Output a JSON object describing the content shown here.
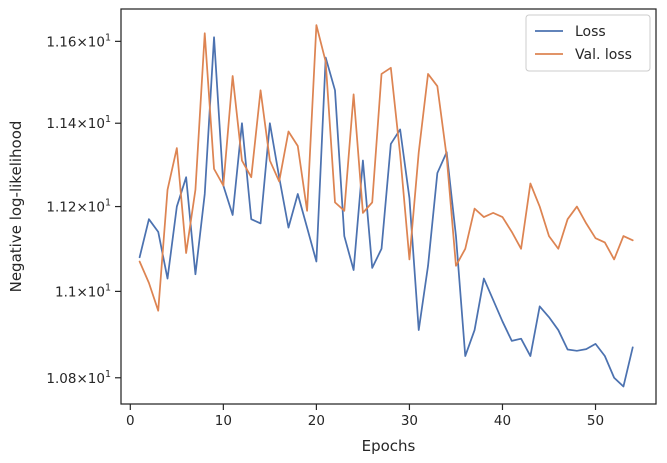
{
  "chart_data": {
    "type": "line",
    "xlabel": "Epochs",
    "ylabel": "Negative log-likelihood",
    "yscale": "log",
    "xlim": [
      -1,
      56.5
    ],
    "ylim": [
      10.74,
      11.68
    ],
    "x_ticks": [
      0,
      10,
      20,
      30,
      40,
      50
    ],
    "y_ticks": [
      {
        "value": 10.8,
        "base": "1.08",
        "exp": "1"
      },
      {
        "value": 11.0,
        "base": "1.1",
        "exp": "1"
      },
      {
        "value": 11.2,
        "base": "1.12",
        "exp": "1"
      },
      {
        "value": 11.4,
        "base": "1.14",
        "exp": "1"
      },
      {
        "value": 11.6,
        "base": "1.16",
        "exp": "1"
      }
    ],
    "grid": false,
    "legend_position": "top-right",
    "x": [
      1,
      2,
      3,
      4,
      5,
      6,
      7,
      8,
      9,
      10,
      11,
      12,
      13,
      14,
      15,
      16,
      17,
      18,
      19,
      20,
      21,
      22,
      23,
      24,
      25,
      26,
      27,
      28,
      29,
      30,
      31,
      32,
      33,
      34,
      35,
      36,
      37,
      38,
      39,
      40,
      41,
      42,
      43,
      44,
      45,
      46,
      47,
      48,
      49,
      50,
      51,
      52,
      53,
      54
    ],
    "series": [
      {
        "name": "Loss",
        "color": "#4c72b0",
        "values": [
          11.08,
          11.17,
          11.14,
          11.03,
          11.2,
          11.27,
          11.04,
          11.23,
          11.61,
          11.25,
          11.18,
          11.4,
          11.17,
          11.16,
          11.4,
          11.27,
          11.15,
          11.23,
          11.15,
          11.07,
          11.56,
          11.48,
          11.13,
          11.05,
          11.31,
          11.055,
          11.1,
          11.35,
          11.385,
          11.22,
          10.91,
          11.06,
          11.28,
          11.33,
          11.13,
          10.85,
          10.91,
          11.03,
          10.98,
          10.93,
          10.885,
          10.89,
          10.85,
          10.965,
          10.94,
          10.91,
          10.865,
          10.862,
          10.866,
          10.878,
          10.85,
          10.8,
          10.78,
          10.87
        ]
      },
      {
        "name": "Val. loss",
        "color": "#dd8452",
        "values": [
          11.07,
          11.02,
          10.955,
          11.24,
          11.34,
          11.09,
          11.24,
          11.62,
          11.29,
          11.25,
          11.515,
          11.31,
          11.27,
          11.48,
          11.31,
          11.26,
          11.38,
          11.345,
          11.19,
          11.64,
          11.55,
          11.21,
          11.19,
          11.47,
          11.185,
          11.21,
          11.52,
          11.535,
          11.325,
          11.075,
          11.33,
          11.52,
          11.49,
          11.32,
          11.06,
          11.1,
          11.195,
          11.175,
          11.185,
          11.175,
          11.14,
          11.1,
          11.255,
          11.2,
          11.13,
          11.1,
          11.17,
          11.2,
          11.16,
          11.125,
          11.115,
          11.075,
          11.13,
          11.12
        ]
      }
    ]
  }
}
